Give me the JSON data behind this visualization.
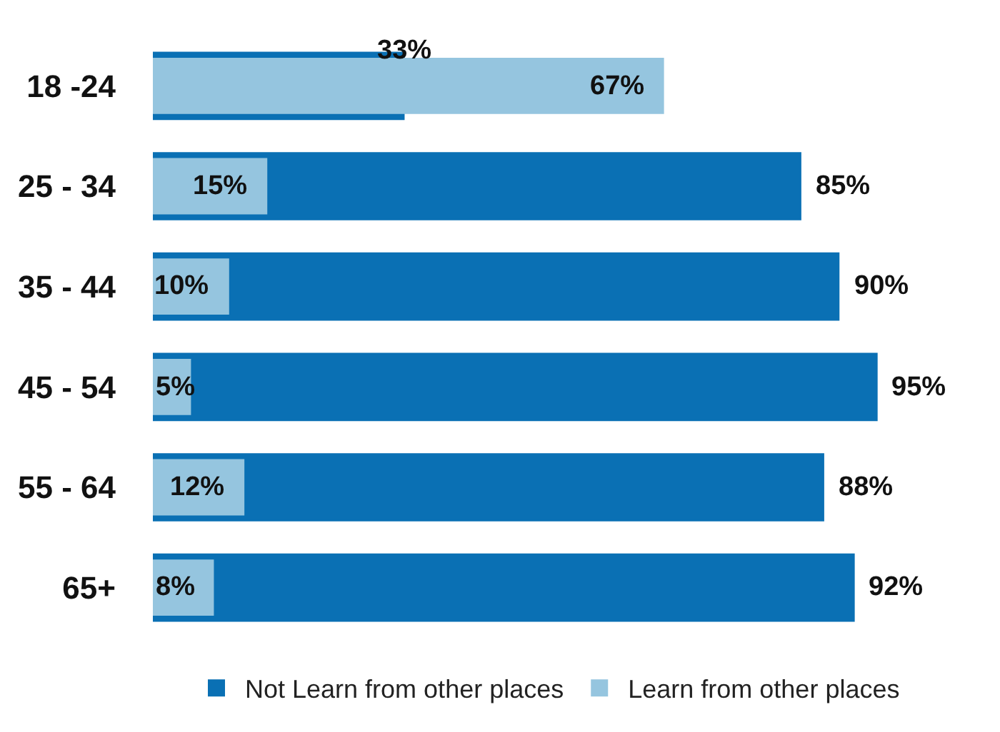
{
  "chart_data": {
    "type": "bar",
    "orientation": "horizontal",
    "categories": [
      "18 -24",
      "25 - 34",
      "35 - 44",
      "45 - 54",
      "55 - 64",
      "65+"
    ],
    "series": [
      {
        "name": "Not Learn from other places",
        "color": "#0a70b4",
        "values": [
          33,
          85,
          90,
          95,
          88,
          92
        ],
        "value_labels": [
          "33%",
          "85%",
          "90%",
          "95%",
          "88%",
          "92%"
        ]
      },
      {
        "name": "Learn from other places",
        "color": "#95c5df",
        "values": [
          67,
          15,
          10,
          5,
          12,
          8
        ],
        "value_labels": [
          "67%",
          "15%",
          "10%",
          "5%",
          "12%",
          "8%"
        ]
      }
    ],
    "legend": "bottom"
  }
}
